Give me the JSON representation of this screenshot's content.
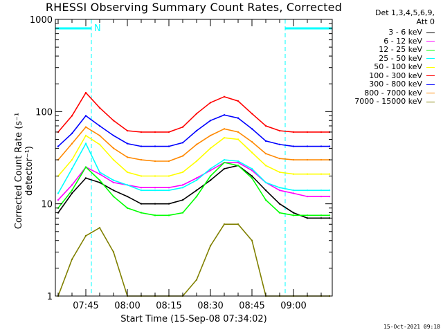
{
  "chart_data": {
    "type": "line",
    "title": "RHESSI Observing Summary Count Rates, Corrected",
    "xlabel": "Start Time (15-Sep-08 07:34:02)",
    "ylabel": "Corrected Count Rate (s⁻¹ detector⁻¹)",
    "y_scale": "log",
    "ylim": [
      1,
      1000
    ],
    "xlim": [
      "07:34",
      "09:14"
    ],
    "x_tick_labels": [
      "07:45",
      "08:00",
      "08:15",
      "08:30",
      "08:45",
      "09:00"
    ],
    "y_tick_labels": [
      "1",
      "10",
      "100",
      "1000"
    ],
    "legend_title": [
      "Det 1,3,4,5,6,9,",
      "Att 0"
    ],
    "legend_placement": "right, outside plot",
    "annotation_marker": "N",
    "timestamp": "15-Oct-2021 09:18",
    "night_intervals": [
      [
        "07:34",
        "07:47"
      ],
      [
        "08:57",
        "09:14"
      ]
    ],
    "x": [
      "07:35",
      "07:40",
      "07:45",
      "07:50",
      "07:55",
      "08:00",
      "08:05",
      "08:10",
      "08:15",
      "08:20",
      "08:25",
      "08:30",
      "08:35",
      "08:40",
      "08:45",
      "08:50",
      "08:55",
      "09:00",
      "09:05",
      "09:10",
      "09:13"
    ],
    "series": [
      {
        "name": "3 - 6 keV",
        "color": "#000000",
        "values": [
          8,
          13,
          19,
          17,
          14,
          12,
          10,
          10,
          10,
          11,
          14,
          18,
          24,
          26,
          20,
          14,
          10,
          8,
          7,
          7,
          7
        ]
      },
      {
        "name": "6 - 12 keV",
        "color": "#ff00ff",
        "values": [
          11,
          16,
          25,
          21,
          17,
          16,
          15,
          15,
          15,
          16,
          19,
          23,
          28,
          28,
          23,
          17,
          14,
          13,
          12,
          12,
          12
        ]
      },
      {
        "name": "12 - 25 keV",
        "color": "#00ff00",
        "values": [
          9,
          14,
          25,
          18,
          12,
          9,
          8,
          7.5,
          7.5,
          8,
          12,
          20,
          28,
          26,
          19,
          11,
          8,
          7.5,
          7.5,
          7.5,
          7.5
        ]
      },
      {
        "name": "25 - 50 keV",
        "color": "#00ffff",
        "values": [
          13,
          24,
          45,
          22,
          18,
          16,
          14,
          14,
          14,
          15,
          18,
          24,
          30,
          29,
          24,
          17,
          15,
          14,
          14,
          14,
          14
        ]
      },
      {
        "name": "50 - 100 keV",
        "color": "#ffff00",
        "values": [
          20,
          30,
          55,
          44,
          30,
          22,
          20,
          20,
          20,
          22,
          29,
          40,
          52,
          50,
          36,
          26,
          22,
          21,
          21,
          21,
          21
        ]
      },
      {
        "name": "100 - 300 keV",
        "color": "#ff0000",
        "values": [
          60,
          90,
          160,
          110,
          80,
          62,
          60,
          60,
          60,
          68,
          95,
          125,
          145,
          130,
          95,
          70,
          62,
          60,
          60,
          60,
          60
        ]
      },
      {
        "name": "300 - 800 keV",
        "color": "#0000ff",
        "values": [
          42,
          58,
          90,
          70,
          55,
          45,
          42,
          42,
          42,
          46,
          62,
          80,
          92,
          85,
          65,
          48,
          44,
          42,
          42,
          42,
          42
        ]
      },
      {
        "name": "800 - 7000 keV",
        "color": "#ff8800",
        "values": [
          30,
          45,
          68,
          55,
          40,
          32,
          30,
          29,
          29,
          33,
          44,
          55,
          65,
          60,
          47,
          35,
          31,
          30,
          30,
          30,
          30
        ]
      },
      {
        "name": "7000 - 15000 keV",
        "color": "#808000",
        "values": [
          1,
          2.5,
          4.5,
          5.5,
          3,
          1,
          1,
          1,
          1,
          1,
          1.5,
          3.5,
          6,
          6,
          4,
          1,
          1,
          1,
          1,
          1,
          1
        ]
      }
    ]
  }
}
